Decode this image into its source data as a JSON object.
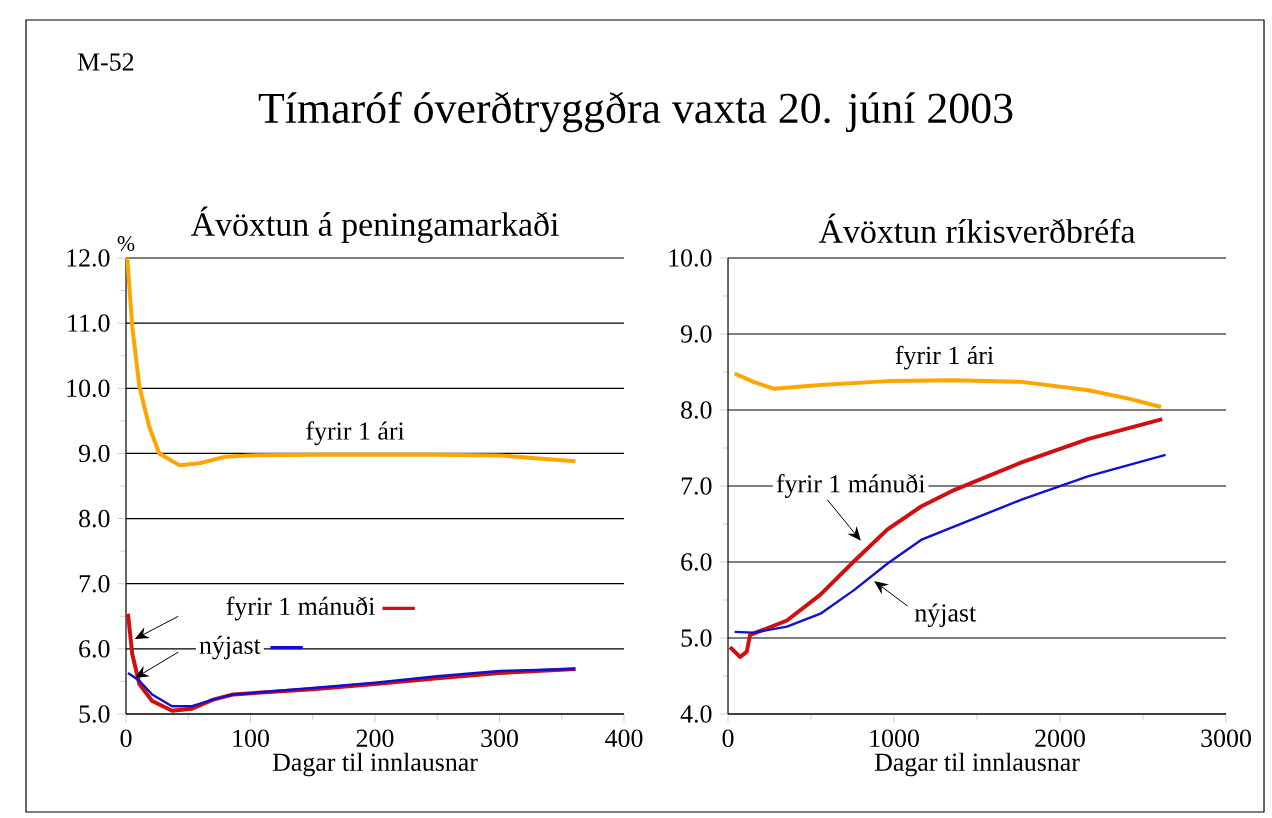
{
  "chart_data": [
    {
      "type": "line",
      "title": "Ávöxtun á peningamarkaði",
      "ylabel": "%",
      "xlabel": "Dagar til innlausnar",
      "annotations": [
        "M-52",
        "Tímaróf óverðtryggðra vaxta 20. júní 2003"
      ],
      "xlim": [
        0,
        400
      ],
      "xticks": [
        0,
        100,
        200,
        300,
        400
      ],
      "ylim": [
        5,
        12
      ],
      "yticks": [
        {
          "value": 5,
          "label": "5.0"
        },
        {
          "value": 6,
          "label": "6.0"
        },
        {
          "value": 7,
          "label": "7.0"
        },
        {
          "value": 8,
          "label": "8.0"
        },
        {
          "value": 9,
          "label": "9.0"
        },
        {
          "value": 10,
          "label": "10.0"
        },
        {
          "value": 11,
          "label": "11.0"
        },
        {
          "value": 12,
          "label": "12.0"
        }
      ],
      "grid": "y",
      "series": [
        {
          "name": "fyrir 1 ári",
          "color": "#ffa500",
          "x": [
            1,
            5,
            10.7,
            18.7,
            26.7,
            42.8,
            59,
            80,
            100,
            150,
            200,
            250,
            300,
            326,
            361
          ],
          "values": [
            12.0,
            10.95,
            10.03,
            9.41,
            9.0,
            8.82,
            8.85,
            8.95,
            8.97,
            8.98,
            8.98,
            8.98,
            8.97,
            8.93,
            8.88
          ]
        },
        {
          "name": "fyrir 1 mánuði",
          "color": "#d01010",
          "x": [
            1.6,
            5,
            10.7,
            21,
            37,
            53,
            70,
            86,
            150,
            200,
            250,
            300,
            361
          ],
          "values": [
            6.54,
            5.92,
            5.46,
            5.2,
            5.05,
            5.08,
            5.22,
            5.3,
            5.38,
            5.46,
            5.55,
            5.63,
            5.69
          ]
        },
        {
          "name": "nýjast",
          "color": "#1010d0",
          "x": [
            1.6,
            10.7,
            21,
            37,
            53,
            70,
            86,
            150,
            200,
            250,
            300,
            361
          ],
          "values": [
            5.63,
            5.51,
            5.3,
            5.12,
            5.12,
            5.22,
            5.3,
            5.4,
            5.48,
            5.58,
            5.66,
            5.69
          ]
        }
      ]
    },
    {
      "type": "line",
      "title": "Ávöxtun ríkisverðbréfa",
      "xlabel": "Dagar til innlausnar",
      "xlim": [
        0,
        3000
      ],
      "xticks": [
        0,
        1000,
        2000,
        3000
      ],
      "ylim": [
        4,
        10
      ],
      "yticks": [
        {
          "value": 4,
          "label": "4.0"
        },
        {
          "value": 5,
          "label": "5.0"
        },
        {
          "value": 6,
          "label": "6.0"
        },
        {
          "value": 7,
          "label": "7.0"
        },
        {
          "value": 8,
          "label": "8.0"
        },
        {
          "value": 9,
          "label": "9.0"
        },
        {
          "value": 10,
          "label": "10.0"
        }
      ],
      "grid": "y",
      "series": [
        {
          "name": "fyrir 1 ári",
          "color": "#ffa500",
          "x": [
            40,
            153,
            275,
            557,
            961,
            1365,
            1768,
            2172,
            2414,
            2608
          ],
          "values": [
            8.48,
            8.37,
            8.28,
            8.33,
            8.38,
            8.39,
            8.37,
            8.26,
            8.15,
            8.04
          ]
        },
        {
          "name": "fyrir 1 mánuði",
          "color": "#d01010",
          "x": [
            12,
            73,
            113,
            133,
            355,
            557,
            759,
            961,
            1163,
            1365,
            1768,
            2172,
            2616
          ],
          "values": [
            4.88,
            4.75,
            4.82,
            5.04,
            5.23,
            5.57,
            6.01,
            6.43,
            6.73,
            6.95,
            7.31,
            7.62,
            7.88
          ]
        },
        {
          "name": "nýjast",
          "color": "#1010d0",
          "x": [
            40,
            153,
            355,
            557,
            759,
            961,
            1163,
            1365,
            1768,
            2172,
            2636
          ],
          "values": [
            5.08,
            5.07,
            5.15,
            5.32,
            5.63,
            5.98,
            6.29,
            6.47,
            6.82,
            7.13,
            7.41
          ]
        }
      ]
    }
  ]
}
